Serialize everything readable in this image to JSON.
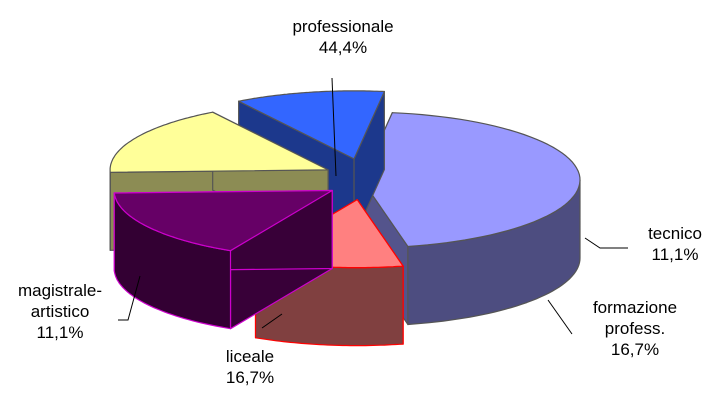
{
  "chart_data": {
    "type": "pie",
    "style": "3d-exploded",
    "title": "",
    "legend": "none",
    "slices": [
      {
        "label": [
          "professionale"
        ],
        "percent": "44,4%",
        "value": 44.4,
        "color": "#9999ff"
      },
      {
        "label": [
          "tecnico"
        ],
        "percent": "11,1%",
        "value": 11.1,
        "color": "#ff8080"
      },
      {
        "label": [
          "formazione",
          "profess."
        ],
        "percent": "16,7%",
        "value": 16.7,
        "color": "#660066"
      },
      {
        "label": [
          "liceale"
        ],
        "percent": "16,7%",
        "value": 16.7,
        "color": "#ffff99"
      },
      {
        "label": [
          "magistrale-",
          "artistico"
        ],
        "percent": "11,1%",
        "value": 11.1,
        "color": "#3366ff"
      }
    ]
  }
}
